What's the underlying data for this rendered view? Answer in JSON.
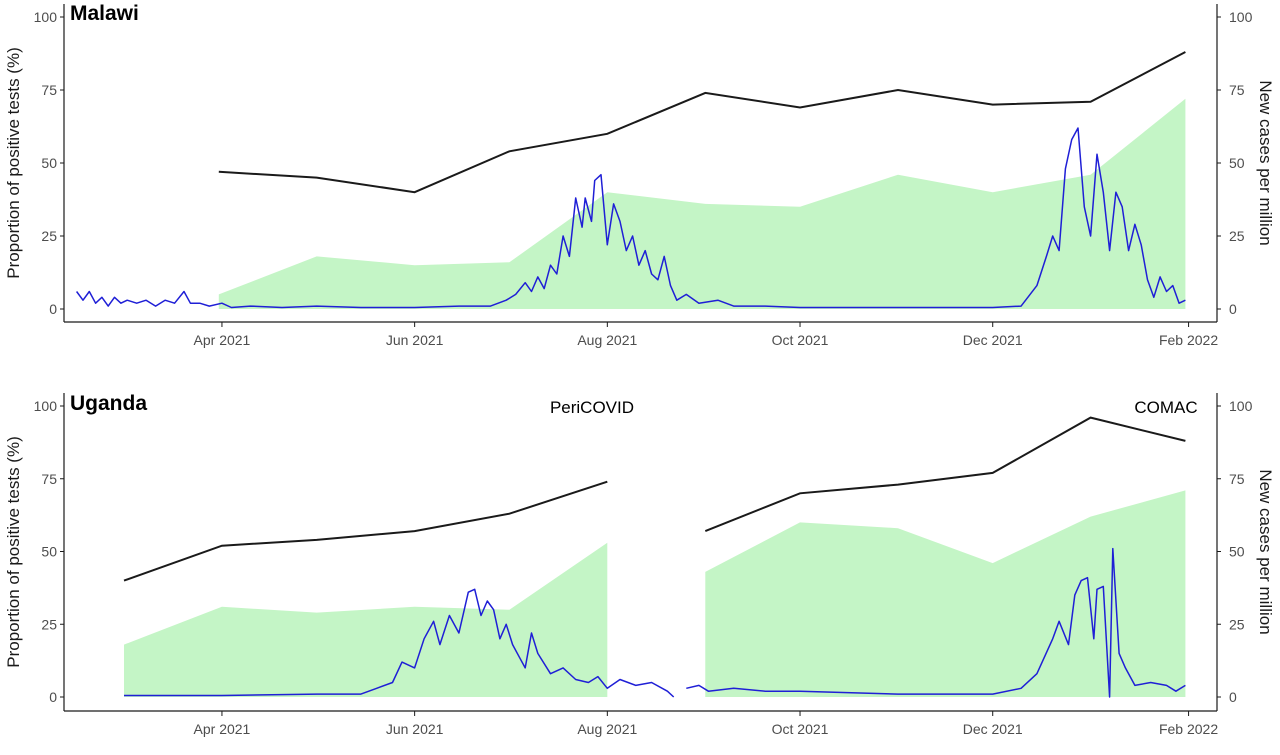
{
  "colors": {
    "positivity_line": "#1f1fd6",
    "positivity_line_faded": "#4f7fe0",
    "cases_line": "#1a1a1a",
    "tests_area": "#c4f5c6"
  },
  "chart_data": [
    {
      "type": "line",
      "title": "Malawi",
      "ylabel_left": "Proportion of positive tests (%)",
      "ylabel_right": "New cases per million",
      "x_ticks": [
        "Apr 2021",
        "Jun 2021",
        "Aug 2021",
        "Oct 2021",
        "Dec 2021",
        "Feb 2022"
      ],
      "xlim": [
        "2021-02-10",
        "2022-02-10"
      ],
      "ylim_left": [
        0,
        100
      ],
      "ylim_right": [
        0,
        100
      ],
      "y_ticks_left": [
        "0",
        "25",
        "50",
        "75",
        "100"
      ],
      "y_ticks_right": [
        "0",
        "25",
        "50",
        "75",
        "100"
      ],
      "annotations": [],
      "series": [
        {
          "kind": "area",
          "points": [
            [
              "2021-03-31",
              5
            ],
            [
              "2021-05-01",
              18
            ],
            [
              "2021-06-01",
              15
            ],
            [
              "2021-07-01",
              16
            ],
            [
              "2021-08-01",
              40
            ],
            [
              "2021-09-01",
              36
            ],
            [
              "2021-10-01",
              35
            ],
            [
              "2021-11-01",
              46
            ],
            [
              "2021-12-01",
              40
            ],
            [
              "2022-01-01",
              46
            ],
            [
              "2022-01-31",
              72
            ]
          ]
        },
        {
          "kind": "line",
          "axis": "right",
          "points": [
            [
              "2021-03-31",
              47
            ],
            [
              "2021-05-01",
              45
            ],
            [
              "2021-06-01",
              40
            ],
            [
              "2021-07-01",
              54
            ],
            [
              "2021-08-01",
              60
            ],
            [
              "2021-09-01",
              74
            ],
            [
              "2021-10-01",
              69
            ],
            [
              "2021-11-01",
              75
            ],
            [
              "2021-12-01",
              70
            ],
            [
              "2022-01-01",
              71
            ],
            [
              "2022-01-31",
              88
            ]
          ]
        },
        {
          "kind": "line",
          "axis": "left",
          "points": [
            [
              "2021-02-14",
              6
            ],
            [
              "2021-02-16",
              3
            ],
            [
              "2021-02-18",
              6
            ],
            [
              "2021-02-20",
              2
            ],
            [
              "2021-02-22",
              4
            ],
            [
              "2021-02-24",
              1
            ],
            [
              "2021-02-26",
              4
            ],
            [
              "2021-02-28",
              2
            ],
            [
              "2021-03-02",
              3
            ],
            [
              "2021-03-05",
              2
            ],
            [
              "2021-03-08",
              3
            ],
            [
              "2021-03-11",
              1
            ],
            [
              "2021-03-14",
              3
            ],
            [
              "2021-03-17",
              2
            ],
            [
              "2021-03-20",
              6
            ],
            [
              "2021-03-22",
              2
            ],
            [
              "2021-03-25",
              2
            ],
            [
              "2021-03-28",
              1
            ],
            [
              "2021-04-01",
              2
            ],
            [
              "2021-04-04",
              0.5
            ],
            [
              "2021-04-10",
              1
            ],
            [
              "2021-04-20",
              0.5
            ],
            [
              "2021-05-01",
              1
            ],
            [
              "2021-05-15",
              0.5
            ],
            [
              "2021-06-01",
              0.5
            ],
            [
              "2021-06-15",
              1
            ],
            [
              "2021-06-25",
              1
            ],
            [
              "2021-06-30",
              3
            ],
            [
              "2021-07-03",
              5
            ],
            [
              "2021-07-06",
              9
            ],
            [
              "2021-07-08",
              6
            ],
            [
              "2021-07-10",
              11
            ],
            [
              "2021-07-12",
              7
            ],
            [
              "2021-07-14",
              15
            ],
            [
              "2021-07-16",
              12
            ],
            [
              "2021-07-18",
              25
            ],
            [
              "2021-07-20",
              18
            ],
            [
              "2021-07-22",
              38
            ],
            [
              "2021-07-24",
              28
            ],
            [
              "2021-07-25",
              38
            ],
            [
              "2021-07-27",
              30
            ],
            [
              "2021-07-28",
              44
            ],
            [
              "2021-07-30",
              46
            ],
            [
              "2021-08-01",
              22
            ],
            [
              "2021-08-03",
              36
            ],
            [
              "2021-08-05",
              30
            ],
            [
              "2021-08-07",
              20
            ],
            [
              "2021-08-09",
              25
            ],
            [
              "2021-08-11",
              15
            ],
            [
              "2021-08-13",
              20
            ],
            [
              "2021-08-15",
              12
            ],
            [
              "2021-08-17",
              10
            ],
            [
              "2021-08-19",
              18
            ],
            [
              "2021-08-21",
              8
            ],
            [
              "2021-08-23",
              3
            ],
            [
              "2021-08-26",
              5
            ],
            [
              "2021-08-30",
              2
            ],
            [
              "2021-09-05",
              3
            ],
            [
              "2021-09-10",
              1
            ],
            [
              "2021-09-20",
              1
            ],
            [
              "2021-10-01",
              0.5
            ],
            [
              "2021-11-01",
              0.5
            ],
            [
              "2021-12-01",
              0.5
            ],
            [
              "2021-12-10",
              1
            ],
            [
              "2021-12-15",
              8
            ],
            [
              "2021-12-18",
              18
            ],
            [
              "2021-12-20",
              25
            ],
            [
              "2021-12-22",
              20
            ],
            [
              "2021-12-24",
              48
            ],
            [
              "2021-12-26",
              58
            ],
            [
              "2021-12-28",
              62
            ],
            [
              "2021-12-30",
              35
            ],
            [
              "2022-01-01",
              25
            ],
            [
              "2022-01-03",
              53
            ],
            [
              "2022-01-05",
              40
            ],
            [
              "2022-01-07",
              20
            ],
            [
              "2022-01-09",
              40
            ],
            [
              "2022-01-11",
              35
            ],
            [
              "2022-01-13",
              20
            ],
            [
              "2022-01-15",
              29
            ],
            [
              "2022-01-17",
              22
            ],
            [
              "2022-01-19",
              10
            ],
            [
              "2022-01-21",
              4
            ],
            [
              "2022-01-23",
              11
            ],
            [
              "2022-01-25",
              6
            ],
            [
              "2022-01-27",
              8
            ],
            [
              "2022-01-29",
              2
            ],
            [
              "2022-01-31",
              3
            ]
          ]
        }
      ]
    },
    {
      "type": "line",
      "title": "Uganda",
      "ylabel_left": "Proportion of positive tests (%)",
      "ylabel_right": "New cases per million",
      "x_ticks": [
        "Apr 2021",
        "Jun 2021",
        "Aug 2021",
        "Oct 2021",
        "Dec 2021",
        "Feb 2022"
      ],
      "xlim": [
        "2021-02-10",
        "2022-02-10"
      ],
      "ylim_left": [
        0,
        100
      ],
      "ylim_right": [
        0,
        100
      ],
      "y_ticks_left": [
        "0",
        "25",
        "50",
        "75",
        "100"
      ],
      "y_ticks_right": [
        "0",
        "25",
        "50",
        "75",
        "100"
      ],
      "annotations": [
        "PeriCOVID",
        "COMAC"
      ],
      "series": [
        {
          "kind": "area",
          "segments": [
            [
              [
                "2021-03-01",
                18
              ],
              [
                "2021-04-01",
                31
              ],
              [
                "2021-05-01",
                29
              ],
              [
                "2021-06-01",
                31
              ],
              [
                "2021-07-01",
                30
              ],
              [
                "2021-08-01",
                53
              ]
            ],
            [
              [
                "2021-09-01",
                43
              ],
              [
                "2021-10-01",
                60
              ],
              [
                "2021-11-01",
                58
              ],
              [
                "2021-12-01",
                46
              ],
              [
                "2022-01-01",
                62
              ],
              [
                "2022-01-31",
                71
              ]
            ]
          ]
        },
        {
          "kind": "line",
          "axis": "right",
          "segments": [
            [
              [
                "2021-03-01",
                40
              ],
              [
                "2021-04-01",
                52
              ],
              [
                "2021-05-01",
                54
              ],
              [
                "2021-06-01",
                57
              ],
              [
                "2021-07-01",
                63
              ],
              [
                "2021-08-01",
                74
              ]
            ],
            [
              [
                "2021-09-01",
                57
              ],
              [
                "2021-10-01",
                70
              ],
              [
                "2021-11-01",
                73
              ],
              [
                "2021-12-01",
                77
              ],
              [
                "2022-01-01",
                96
              ],
              [
                "2022-01-31",
                88
              ]
            ]
          ]
        },
        {
          "kind": "line",
          "axis": "left",
          "segments": [
            [
              [
                "2021-03-01",
                0.5
              ],
              [
                "2021-04-01",
                0.5
              ],
              [
                "2021-05-01",
                1
              ],
              [
                "2021-05-15",
                1
              ],
              [
                "2021-05-20",
                3
              ],
              [
                "2021-05-25",
                5
              ],
              [
                "2021-05-28",
                12
              ],
              [
                "2021-06-01",
                10
              ],
              [
                "2021-06-04",
                20
              ],
              [
                "2021-06-07",
                26
              ],
              [
                "2021-06-09",
                18
              ],
              [
                "2021-06-12",
                28
              ],
              [
                "2021-06-15",
                22
              ],
              [
                "2021-06-18",
                36
              ],
              [
                "2021-06-20",
                37
              ],
              [
                "2021-06-22",
                28
              ],
              [
                "2021-06-24",
                33
              ],
              [
                "2021-06-26",
                30
              ],
              [
                "2021-06-28",
                20
              ],
              [
                "2021-06-30",
                25
              ],
              [
                "2021-07-02",
                18
              ],
              [
                "2021-07-04",
                14
              ],
              [
                "2021-07-06",
                10
              ],
              [
                "2021-07-08",
                22
              ],
              [
                "2021-07-10",
                15
              ],
              [
                "2021-07-14",
                8
              ],
              [
                "2021-07-18",
                10
              ],
              [
                "2021-07-22",
                6
              ],
              [
                "2021-07-26",
                5
              ],
              [
                "2021-07-29",
                7
              ],
              [
                "2021-08-01",
                3
              ],
              [
                "2021-08-05",
                6
              ],
              [
                "2021-08-10",
                4
              ],
              [
                "2021-08-15",
                5
              ],
              [
                "2021-08-20",
                2
              ],
              [
                "2021-08-22",
                0
              ]
            ],
            [
              [
                "2021-08-26",
                3
              ],
              [
                "2021-08-30",
                4
              ],
              [
                "2021-09-02",
                2
              ],
              [
                "2021-09-10",
                3
              ],
              [
                "2021-09-20",
                2
              ],
              [
                "2021-10-01",
                2
              ],
              [
                "2021-11-01",
                1
              ],
              [
                "2021-12-01",
                1
              ],
              [
                "2021-12-10",
                3
              ],
              [
                "2021-12-15",
                8
              ],
              [
                "2021-12-20",
                20
              ],
              [
                "2021-12-22",
                26
              ],
              [
                "2021-12-25",
                18
              ],
              [
                "2021-12-27",
                35
              ],
              [
                "2021-12-29",
                40
              ],
              [
                "2021-12-31",
                41
              ],
              [
                "2022-01-02",
                20
              ],
              [
                "2022-01-03",
                37
              ],
              [
                "2022-01-05",
                38
              ],
              [
                "2022-01-07",
                0
              ],
              [
                "2022-01-08",
                51
              ],
              [
                "2022-01-10",
                15
              ],
              [
                "2022-01-12",
                10
              ],
              [
                "2022-01-15",
                4
              ],
              [
                "2022-01-20",
                5
              ],
              [
                "2022-01-25",
                4
              ],
              [
                "2022-01-28",
                2
              ],
              [
                "2022-01-31",
                4
              ]
            ]
          ]
        }
      ]
    }
  ]
}
